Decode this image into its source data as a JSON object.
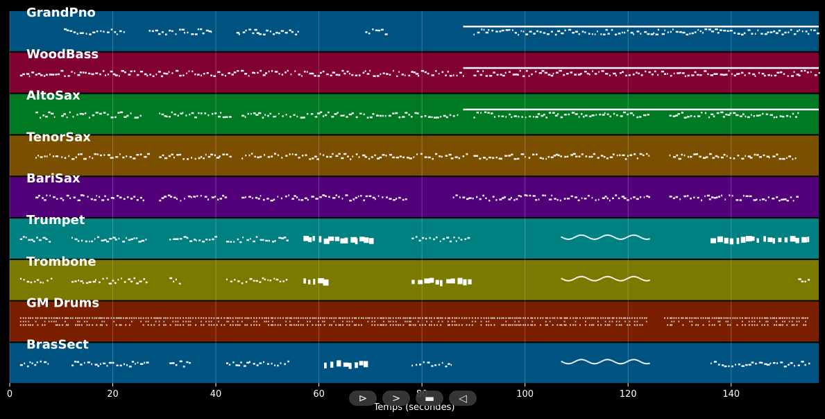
{
  "app": {
    "axis_title": "Temps (secondes)"
  },
  "controls": [
    {
      "name": "play-icon-button",
      "icon": "play-outline-icon",
      "glyph": "⊳"
    },
    {
      "name": "forward-button",
      "icon": "forward-chevron-icon",
      "glyph": ">"
    },
    {
      "name": "stop-button",
      "icon": "stop-icon",
      "glyph": "▬"
    },
    {
      "name": "back-button",
      "icon": "back-triangle-icon",
      "glyph": "◁"
    }
  ],
  "chart_data": {
    "type": "piano-roll",
    "xlim": [
      0,
      157
    ],
    "xticks": [
      0,
      20,
      40,
      60,
      80,
      100,
      120,
      140
    ],
    "tick_labels": [
      "0",
      "20",
      "40",
      "60",
      "80",
      "100",
      "120",
      "140"
    ],
    "grid": true,
    "tracks": [
      {
        "name": "GrandPno",
        "color": "#005380",
        "sustained": [
          [
            88,
            157
          ]
        ],
        "segments": [
          [
            10.5,
            22.5,
            "dots"
          ],
          [
            27,
            39.5,
            "dots"
          ],
          [
            44,
            56,
            "dots"
          ],
          [
            69,
            73,
            "dots"
          ],
          [
            90,
            157,
            "dots"
          ]
        ]
      },
      {
        "name": "WoodBass",
        "color": "#800030",
        "sustained": [
          [
            88,
            157
          ]
        ],
        "segments": [
          [
            2,
            88,
            "dots"
          ],
          [
            90,
            157,
            "dots"
          ]
        ]
      },
      {
        "name": "AltoSax",
        "color": "#007A22",
        "sustained": [
          [
            88,
            157
          ]
        ],
        "segments": [
          [
            5,
            9,
            "dots"
          ],
          [
            10,
            26,
            "dots"
          ],
          [
            29,
            43,
            "dots"
          ],
          [
            45,
            87,
            "dots"
          ],
          [
            90,
            124,
            "dots"
          ],
          [
            128,
            153,
            "dots"
          ]
        ]
      },
      {
        "name": "TenorSax",
        "color": "#7A5000",
        "sustained": [],
        "segments": [
          [
            5,
            9,
            "dots"
          ],
          [
            10,
            27,
            "dots"
          ],
          [
            29,
            43,
            "dots"
          ],
          [
            45,
            89,
            "dots"
          ],
          [
            90,
            124,
            "dots"
          ],
          [
            128,
            153,
            "dots"
          ]
        ]
      },
      {
        "name": "BariSax",
        "color": "#52007A",
        "sustained": [],
        "segments": [
          [
            5,
            26,
            "dots"
          ],
          [
            29,
            42,
            "dots"
          ],
          [
            45,
            77,
            "dots"
          ],
          [
            86,
            124,
            "dots"
          ],
          [
            128,
            153,
            "dots"
          ]
        ]
      },
      {
        "name": "Trumpet",
        "color": "#008080",
        "sustained": [],
        "segments": [
          [
            2,
            8,
            "dots"
          ],
          [
            12,
            27,
            "dots"
          ],
          [
            31,
            40,
            "dots"
          ],
          [
            42,
            54,
            "dots"
          ],
          [
            57,
            70,
            "blocks"
          ],
          [
            78,
            89,
            "dots"
          ],
          [
            107,
            124,
            "wave"
          ],
          [
            136,
            155,
            "blocks"
          ]
        ]
      },
      {
        "name": "Trombone",
        "color": "#7A7A00",
        "sustained": [],
        "segments": [
          [
            2,
            8,
            "dots"
          ],
          [
            12,
            27,
            "dots"
          ],
          [
            31,
            33,
            "dots"
          ],
          [
            42,
            54,
            "dots"
          ],
          [
            57,
            61,
            "blocks"
          ],
          [
            78,
            89,
            "blocks"
          ],
          [
            107,
            124,
            "wave"
          ],
          [
            153,
            155,
            "dots"
          ]
        ]
      },
      {
        "name": "GM Drums",
        "color": "#7A2000",
        "sustained": [],
        "segments": [
          [
            2,
            124,
            "dense"
          ],
          [
            127,
            155,
            "dense"
          ]
        ]
      },
      {
        "name": "BrasSect",
        "color": "#005380",
        "sustained": [],
        "segments": [
          [
            2,
            8,
            "dots"
          ],
          [
            12,
            27,
            "dots"
          ],
          [
            31,
            35,
            "dots"
          ],
          [
            42,
            54,
            "dots"
          ],
          [
            61,
            69,
            "blocks"
          ],
          [
            78,
            86,
            "dots"
          ],
          [
            107,
            124,
            "wave"
          ],
          [
            136,
            155,
            "dots"
          ]
        ]
      }
    ]
  }
}
